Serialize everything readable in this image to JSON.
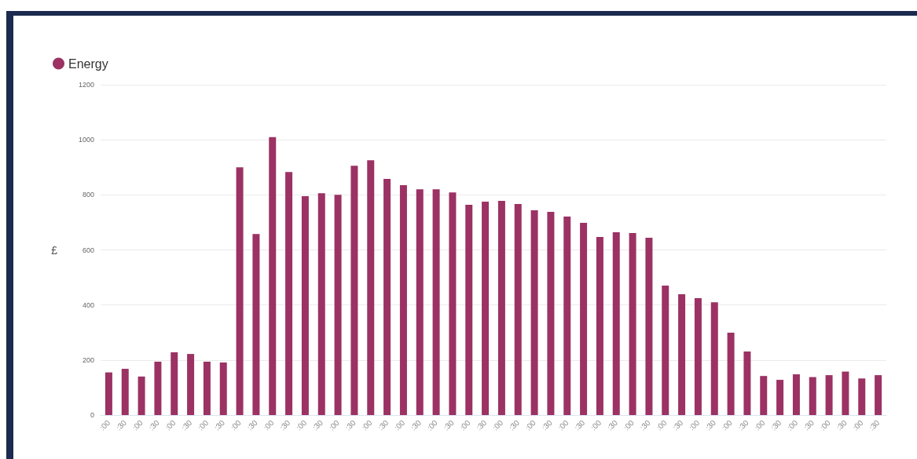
{
  "chart_data": {
    "type": "bar",
    "ylabel": "£",
    "categories": [
      ":00",
      ":30",
      ":00",
      ":30",
      ":00",
      ":30",
      ":00",
      ":30",
      ":00",
      ":30",
      ":00",
      ":30",
      ":00",
      ":30",
      ":00",
      ":30",
      ":00",
      ":30",
      ":00",
      ":30",
      ":00",
      ":30",
      ":00",
      ":30",
      ":00",
      ":30",
      ":00",
      ":30",
      ":00",
      ":30",
      ":00",
      ":30",
      ":00",
      ":30",
      ":00",
      ":30",
      ":00",
      ":30",
      ":00",
      ":30",
      ":00",
      ":30",
      ":00",
      ":30",
      ":00",
      ":30",
      ":00",
      ":30"
    ],
    "series": [
      {
        "name": "Energy",
        "color": "#9b3263",
        "values": [
          155,
          168,
          140,
          194,
          228,
          222,
          194,
          191,
          900,
          658,
          1010,
          883,
          795,
          806,
          800,
          906,
          926,
          858,
          835,
          820,
          820,
          809,
          764,
          775,
          778,
          767,
          744,
          738,
          721,
          698,
          647,
          664,
          661,
          644,
          470,
          439,
          425,
          410,
          299,
          231,
          142,
          128,
          148,
          138,
          145,
          158,
          133,
          145
        ]
      }
    ],
    "ylim": [
      0,
      1200
    ],
    "yticks": [
      0,
      200,
      400,
      600,
      800,
      1000,
      1200
    ],
    "grid": "y",
    "legend": "top left"
  }
}
